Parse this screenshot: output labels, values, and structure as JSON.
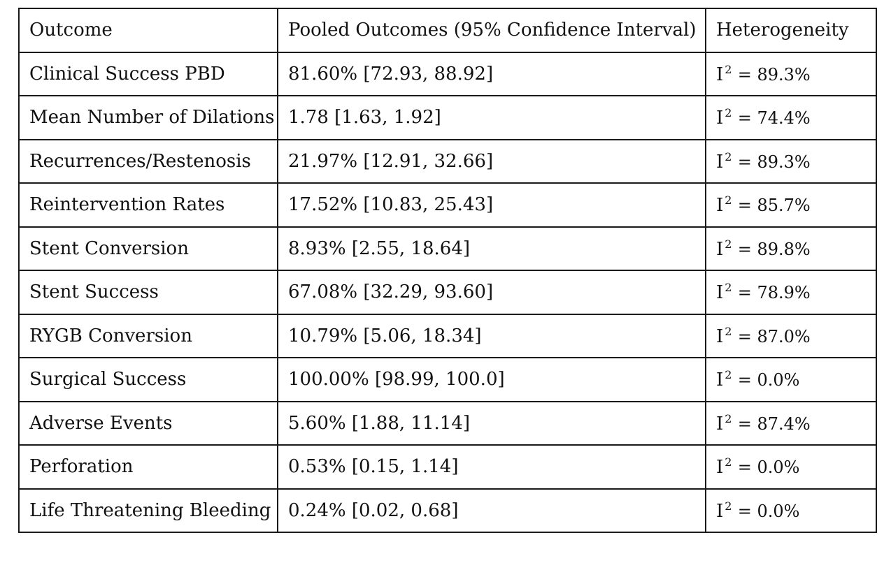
{
  "table": {
    "headers": [
      "Outcome",
      "Pooled Outcomes (95% Confidence Interval)",
      "Heterogeneity"
    ],
    "rows": [
      {
        "outcome": "Clinical Success PBD",
        "pooled": "81.60% [72.93, 88.92]",
        "i2": "= 89.3%"
      },
      {
        "outcome": "Mean Number of Dilations",
        "pooled": "1.78 [1.63, 1.92]",
        "i2": "= 74.4%"
      },
      {
        "outcome": "Recurrences/Restenosis",
        "pooled": "21.97% [12.91, 32.66]",
        "i2": "= 89.3%"
      },
      {
        "outcome": "Reintervention Rates",
        "pooled": "17.52% [10.83, 25.43]",
        "i2": "= 85.7%"
      },
      {
        "outcome": "Stent Conversion",
        "pooled": "8.93% [2.55, 18.64]",
        "i2": "= 89.8%"
      },
      {
        "outcome": "Stent Success",
        "pooled": "67.08% [32.29, 93.60]",
        "i2": "= 78.9%"
      },
      {
        "outcome": "RYGB Conversion",
        "pooled": "10.79% [5.06, 18.34]",
        "i2": "= 87.0%"
      },
      {
        "outcome": "Surgical Success",
        "pooled": "100.00% [98.99, 100.0]",
        "i2": "= 0.0%"
      },
      {
        "outcome": "Adverse Events",
        "pooled": "5.60% [1.88, 11.14]",
        "i2": "= 87.4%"
      },
      {
        "outcome": "Perforation",
        "pooled": "0.53% [0.15, 1.14]",
        "i2": "= 0.0%"
      },
      {
        "outcome": "Life Threatening Bleeding",
        "pooled": "0.24% [0.02, 0.68]",
        "i2": "= 0.0%"
      }
    ],
    "i2_symbol": "I",
    "i2_superscript": "2"
  }
}
